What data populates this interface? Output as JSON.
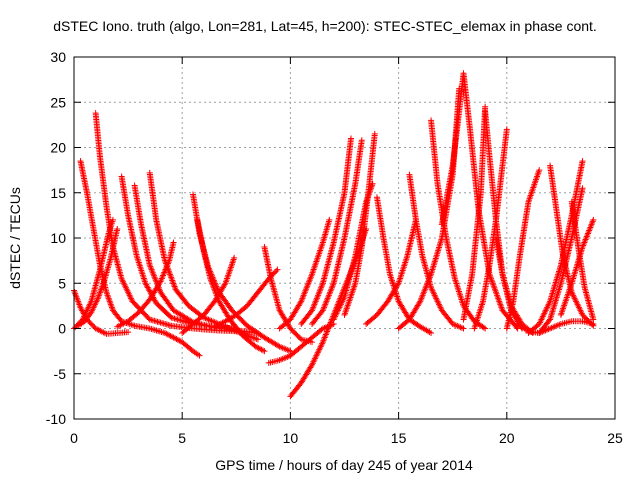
{
  "chart_data": {
    "type": "scatter",
    "title": "dSTEC Iono. truth (algo, Lon=281, Lat=45, h=200): STEC-STEC_elemax in phase cont.",
    "xlabel": "GPS time / hours of day 245 of year 2014",
    "ylabel": "dSTEC  / TECUs",
    "xlim": [
      0,
      25
    ],
    "ylim": [
      -10,
      30
    ],
    "xticks": [
      0,
      5,
      10,
      15,
      20,
      25
    ],
    "yticks": [
      -10,
      -5,
      0,
      5,
      10,
      15,
      20,
      25,
      30
    ],
    "grid": true,
    "marker": "plus",
    "colors": {
      "series": "#ff0000",
      "grid": "#a0a0a0",
      "axis": "#000000"
    },
    "series": [
      {
        "x": [
          0.0,
          0.3,
          0.6,
          1.0,
          1.5,
          2.0,
          2.5
        ],
        "y": [
          4.2,
          2.3,
          1.0,
          0.0,
          -0.6,
          -0.5,
          -0.4
        ]
      },
      {
        "x": [
          0.3,
          0.6,
          0.9,
          1.2,
          1.5,
          1.8,
          2.2,
          2.8,
          3.5,
          4.2,
          5.0,
          5.5,
          5.8
        ],
        "y": [
          18.5,
          15.0,
          11.0,
          7.0,
          4.0,
          2.0,
          0.8,
          0.3,
          0.0,
          -0.5,
          -1.5,
          -2.5,
          -3.0
        ]
      },
      {
        "x": [
          1.0,
          1.2,
          1.5,
          1.8,
          2.2,
          2.7,
          3.5,
          4.5,
          5.5,
          6.5,
          7.5
        ],
        "y": [
          23.8,
          19.0,
          13.5,
          9.0,
          5.5,
          3.0,
          1.0,
          0.3,
          0.0,
          -0.2,
          -0.3
        ]
      },
      {
        "x": [
          0.0,
          0.4,
          0.8,
          1.2,
          1.6,
          1.8
        ],
        "y": [
          0.0,
          1.0,
          3.0,
          6.5,
          10.5,
          12.0
        ]
      },
      {
        "x": [
          0.2,
          0.5,
          0.8,
          1.1,
          1.4,
          1.7,
          2.0
        ],
        "y": [
          0.3,
          0.8,
          1.8,
          3.3,
          5.3,
          7.8,
          11.0
        ]
      },
      {
        "x": [
          2.2,
          2.5,
          2.9,
          3.3,
          3.8,
          4.5,
          5.5,
          6.5,
          7.5
        ],
        "y": [
          16.8,
          12.5,
          8.0,
          5.0,
          2.8,
          1.2,
          0.5,
          0.2,
          0.0
        ]
      },
      {
        "x": [
          2.8,
          3.1,
          3.5,
          4.0,
          4.6,
          5.5,
          6.5,
          7.5,
          8.5
        ],
        "y": [
          15.8,
          11.5,
          7.0,
          4.0,
          2.0,
          0.7,
          0.1,
          -0.2,
          -0.5
        ]
      },
      {
        "x": [
          3.5,
          3.8,
          4.2,
          4.7,
          5.3,
          6.0,
          7.0,
          8.0,
          8.5
        ],
        "y": [
          17.2,
          12.0,
          7.5,
          4.3,
          2.5,
          1.2,
          0.2,
          -0.8,
          -1.2
        ]
      },
      {
        "x": [
          2.0,
          2.5,
          3.0,
          3.5,
          4.0,
          4.4,
          4.6
        ],
        "y": [
          0.2,
          0.8,
          1.8,
          3.2,
          5.2,
          7.5,
          9.5
        ]
      },
      {
        "x": [
          5.5,
          5.8,
          6.2,
          6.7,
          7.3,
          8.0,
          8.8,
          9.5,
          10.0
        ],
        "y": [
          14.8,
          10.5,
          6.8,
          4.0,
          2.0,
          0.3,
          -1.0,
          -2.0,
          -2.5
        ]
      },
      {
        "x": [
          5.7,
          6.0,
          6.3,
          6.7,
          7.2,
          7.8,
          8.4,
          8.8
        ],
        "y": [
          12.0,
          8.5,
          5.5,
          3.0,
          1.0,
          -0.8,
          -2.0,
          -2.5
        ]
      },
      {
        "x": [
          5.0,
          5.5,
          6.0,
          6.5,
          7.0,
          7.4
        ],
        "y": [
          -0.5,
          0.5,
          1.5,
          3.0,
          5.0,
          7.8
        ]
      },
      {
        "x": [
          6.5,
          7.0,
          7.5,
          8.0,
          8.5,
          9.0,
          9.4
        ],
        "y": [
          0.2,
          0.8,
          1.5,
          2.5,
          4.0,
          5.5,
          6.5
        ]
      },
      {
        "x": [
          8.8,
          9.1,
          9.5,
          10.0,
          10.5,
          11.0
        ],
        "y": [
          9.0,
          5.5,
          2.0,
          0.0,
          -1.2,
          -1.5
        ]
      },
      {
        "x": [
          9.0,
          9.5,
          10.0,
          10.5,
          11.0,
          11.5,
          12.0
        ],
        "y": [
          -3.8,
          -3.5,
          -3.0,
          -2.0,
          -1.0,
          0.0,
          0.5
        ]
      },
      {
        "x": [
          10.0,
          10.5,
          11.0,
          11.5,
          12.0,
          12.5,
          13.0,
          13.5
        ],
        "y": [
          -7.5,
          -6.0,
          -4.0,
          -1.5,
          1.5,
          4.5,
          7.5,
          11.0
        ]
      },
      {
        "x": [
          9.5,
          10.0,
          10.5,
          11.0,
          11.5,
          11.8
        ],
        "y": [
          0.0,
          1.0,
          3.0,
          6.0,
          9.5,
          12.0
        ]
      },
      {
        "x": [
          10.5,
          11.0,
          11.5,
          12.0,
          12.5,
          12.8
        ],
        "y": [
          0.5,
          2.0,
          5.0,
          9.5,
          15.0,
          21.0
        ]
      },
      {
        "x": [
          11.0,
          11.5,
          12.0,
          12.5,
          13.0,
          13.3
        ],
        "y": [
          0.5,
          2.0,
          5.0,
          10.0,
          16.0,
          20.8
        ]
      },
      {
        "x": [
          12.0,
          12.5,
          13.0,
          13.5,
          13.8
        ],
        "y": [
          1.0,
          3.5,
          8.0,
          14.0,
          16.0
        ]
      },
      {
        "x": [
          12.5,
          13.0,
          13.3,
          13.6,
          13.9
        ],
        "y": [
          1.5,
          5.0,
          9.0,
          15.0,
          21.5
        ]
      },
      {
        "x": [
          14.0,
          14.3,
          14.6,
          15.0,
          15.5,
          16.0,
          16.5
        ],
        "y": [
          14.5,
          10.0,
          6.0,
          3.0,
          1.0,
          0.2,
          -0.5
        ]
      },
      {
        "x": [
          13.5,
          14.0,
          14.5,
          15.0,
          15.4,
          15.8
        ],
        "y": [
          0.5,
          1.5,
          3.0,
          5.0,
          8.0,
          12.0
        ]
      },
      {
        "x": [
          15.5,
          15.8,
          16.1,
          16.5,
          17.0,
          17.5,
          18.0
        ],
        "y": [
          17.0,
          12.0,
          8.0,
          4.5,
          2.0,
          0.5,
          0.0
        ]
      },
      {
        "x": [
          15.0,
          15.5,
          16.0,
          16.5,
          17.0,
          17.5,
          17.8
        ],
        "y": [
          0.0,
          1.0,
          3.0,
          6.0,
          10.0,
          17.0,
          26.5
        ]
      },
      {
        "x": [
          16.5,
          16.8,
          17.2,
          17.6,
          18.0,
          18.5,
          19.0
        ],
        "y": [
          23.0,
          16.0,
          10.0,
          5.5,
          2.5,
          0.8,
          0.0
        ]
      },
      {
        "x": [
          17.0,
          17.5,
          17.8,
          18.0,
          18.3,
          18.7,
          19.2,
          19.8,
          20.5
        ],
        "y": [
          11.5,
          18.0,
          24.0,
          28.2,
          22.0,
          13.0,
          6.0,
          2.0,
          0.0
        ]
      },
      {
        "x": [
          18.0,
          18.4,
          18.8,
          19.0
        ],
        "y": [
          1.0,
          6.0,
          15.0,
          24.5
        ]
      },
      {
        "x": [
          19.0,
          19.2,
          19.5,
          19.8,
          20.2,
          20.7
        ],
        "y": [
          24.0,
          19.0,
          12.0,
          6.0,
          2.0,
          0.0
        ]
      },
      {
        "x": [
          18.5,
          18.9,
          19.2,
          19.5,
          19.8,
          20.0
        ],
        "y": [
          0.0,
          3.0,
          7.0,
          12.0,
          18.0,
          22.0
        ]
      },
      {
        "x": [
          19.5,
          19.8,
          20.2,
          20.7,
          21.2
        ],
        "y": [
          10.0,
          6.0,
          2.5,
          0.5,
          -0.5
        ]
      },
      {
        "x": [
          20.0,
          20.3,
          20.6,
          21.0,
          21.5
        ],
        "y": [
          0.0,
          3.0,
          8.0,
          14.0,
          17.5
        ]
      },
      {
        "x": [
          21.0,
          21.5,
          22.0,
          22.5,
          23.0,
          23.5
        ],
        "y": [
          -0.5,
          0.5,
          3.0,
          7.0,
          12.5,
          18.5
        ]
      },
      {
        "x": [
          21.5,
          22.0,
          22.5,
          23.0,
          23.5
        ],
        "y": [
          -0.5,
          1.0,
          5.0,
          10.0,
          15.5
        ]
      },
      {
        "x": [
          22.0,
          22.3,
          22.6,
          23.0,
          23.5,
          24.0
        ],
        "y": [
          18.0,
          13.0,
          8.0,
          4.0,
          1.5,
          0.3
        ]
      },
      {
        "x": [
          22.5,
          23.0,
          23.5,
          24.0
        ],
        "y": [
          1.5,
          5.0,
          9.0,
          12.0
        ]
      },
      {
        "x": [
          23.0,
          23.3,
          23.6,
          24.0
        ],
        "y": [
          14.0,
          9.0,
          4.5,
          1.0
        ]
      },
      {
        "x": [
          20.5,
          21.0,
          21.5,
          22.0,
          22.5,
          23.0,
          23.5,
          24.0
        ],
        "y": [
          0.5,
          -0.3,
          -0.5,
          0.0,
          0.5,
          0.8,
          0.8,
          0.5
        ]
      }
    ]
  }
}
